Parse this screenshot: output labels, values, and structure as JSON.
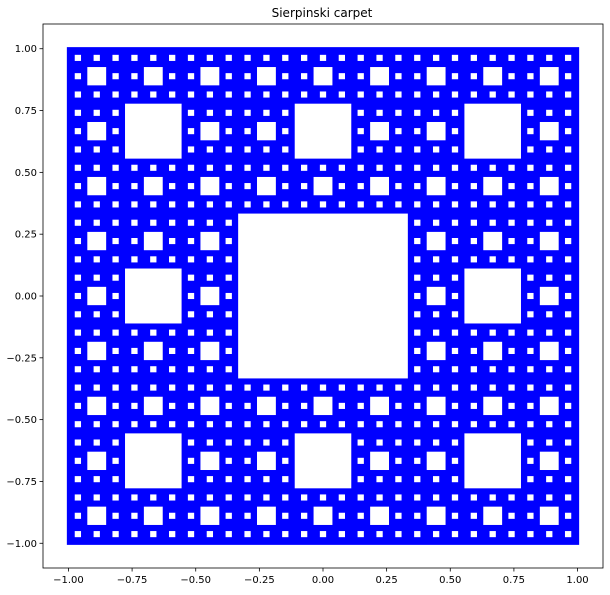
{
  "chart_data": {
    "type": "scatter",
    "title": "Sierpinski carpet",
    "xlabel": "",
    "ylabel": "",
    "xlim": [
      -1.1,
      1.1
    ],
    "ylim": [
      -1.1,
      1.1
    ],
    "xticks": [
      -1.0,
      -0.75,
      -0.5,
      -0.25,
      0.0,
      0.25,
      0.5,
      0.75,
      1.0
    ],
    "xtick_labels": [
      "−1.00",
      "−0.75",
      "−0.50",
      "−0.25",
      "0.00",
      "0.25",
      "0.50",
      "0.75",
      "1.00"
    ],
    "yticks": [
      -1.0,
      -0.75,
      -0.5,
      -0.25,
      0.0,
      0.25,
      0.5,
      0.75,
      1.0
    ],
    "ytick_labels": [
      "−1.00",
      "−0.75",
      "−0.50",
      "−0.25",
      "0.00",
      "0.25",
      "0.50",
      "0.75",
      "1.00"
    ],
    "grid": false,
    "legend": "none",
    "fractal_domain": [
      -1.0,
      1.0
    ],
    "recursion_depth": 4,
    "series": [
      {
        "color": "#0000ff",
        "marker": "point"
      }
    ]
  }
}
